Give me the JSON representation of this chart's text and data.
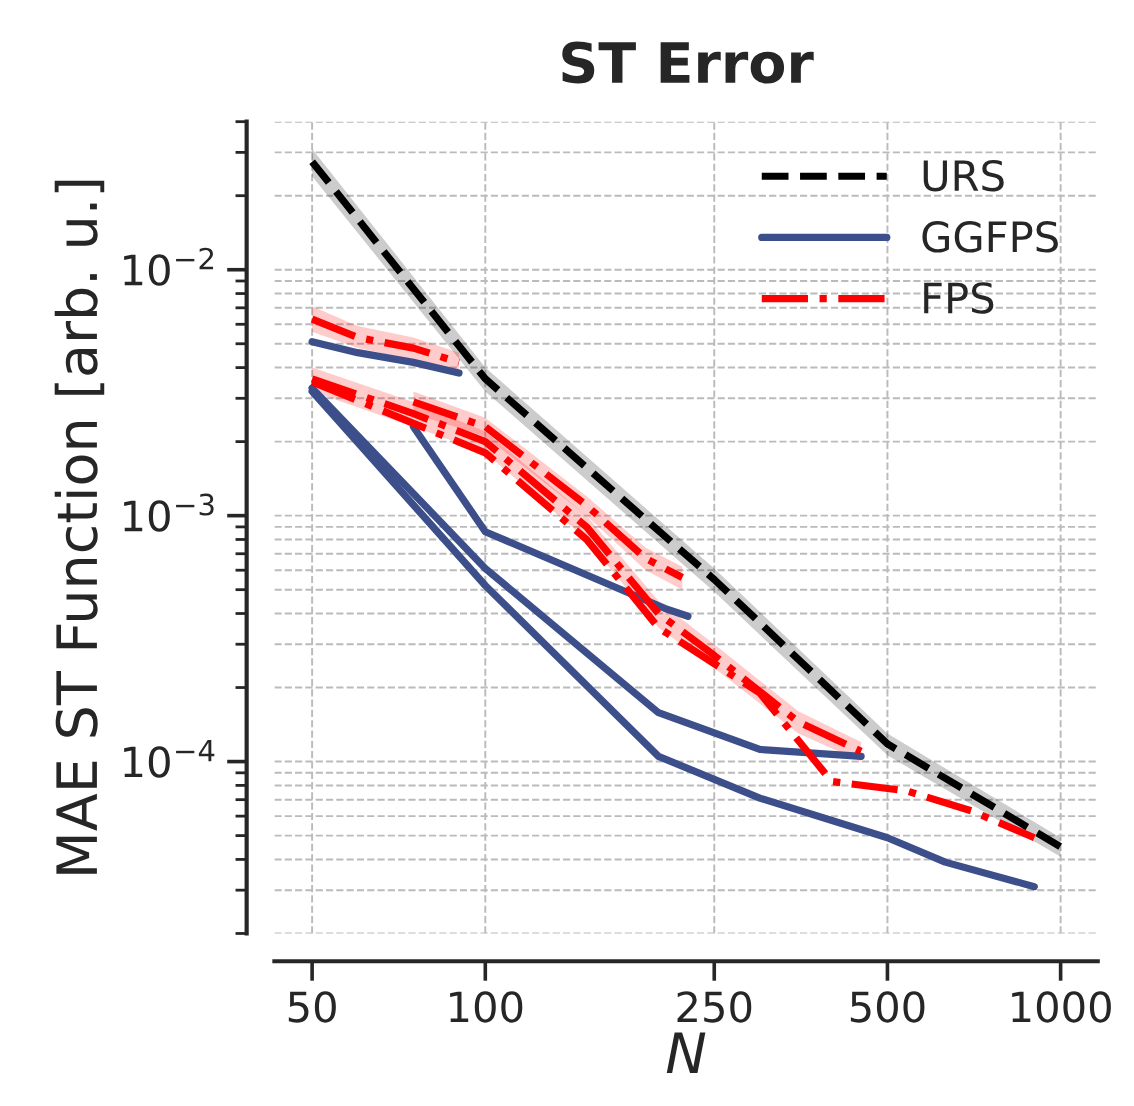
{
  "chart_data": {
    "type": "line",
    "title": "ST Error",
    "xlabel": "N",
    "ylabel": "MAE ST Function [arb. u.]",
    "log": "xy",
    "grid": true,
    "legend": "top right",
    "xlim": [
      43,
      1160
    ],
    "xticks": [
      50,
      100,
      250,
      500,
      1000
    ],
    "ylim": [
      2e-05,
      0.04
    ],
    "yticks": [
      {
        "value": 0.0001,
        "label": "10$^{−4}$"
      },
      {
        "value": 0.001,
        "label": "10$^{−3}$"
      },
      {
        "value": 0.01,
        "label": "10$^{−2}$"
      }
    ],
    "series": [
      {
        "name": "URS",
        "color": "#000000",
        "line_style": "dashed",
        "x": [
          50,
          100,
          250,
          500,
          1000
        ],
        "values": [
          0.0275,
          0.0036,
          0.00055,
          0.000118,
          4.5e-05
        ],
        "lower": [
          0.024,
          0.0032,
          0.00049,
          0.000106,
          4.1e-05
        ],
        "upper": [
          0.031,
          0.004,
          0.00061,
          0.00013,
          4.9e-05
        ]
      },
      {
        "name": "GGFPS",
        "color": "#3d4f8a",
        "line_style": "solid",
        "x": [
          50,
          60,
          75,
          90
        ],
        "values": [
          0.0051,
          0.0046,
          0.0042,
          0.0038
        ]
      },
      {
        "color": "#3d4f8a",
        "line_style": "solid",
        "x": [
          50,
          100,
          200,
          300,
          450
        ],
        "values": [
          0.0033,
          0.00061,
          0.000158,
          0.000112,
          0.000105
        ]
      },
      {
        "color": "#3d4f8a",
        "line_style": "solid",
        "x": [
          50,
          100,
          200,
          300,
          500,
          630,
          900
        ],
        "values": [
          0.0032,
          0.00052,
          0.000105,
          7.1e-05,
          4.9e-05,
          3.9e-05,
          3.1e-05
        ]
      },
      {
        "color": "#3d4f8a",
        "line_style": "solid",
        "x": [
          75,
          100,
          205,
          225
        ],
        "values": [
          0.0023,
          0.00086,
          0.00042,
          0.00039
        ]
      },
      {
        "name": "FPS",
        "color": "#ff0000",
        "line_style": "dashdot",
        "x": [
          50,
          60,
          75,
          90
        ],
        "values": [
          0.0063,
          0.0053,
          0.0048,
          0.0042
        ],
        "lower": [
          0.0056,
          0.0048,
          0.0043,
          0.0038
        ],
        "upper": [
          0.0071,
          0.0059,
          0.0053,
          0.0046
        ]
      },
      {
        "color": "#ff0000",
        "line_style": "dashdot",
        "x": [
          50,
          75,
          100,
          150,
          200,
          250,
          350,
          450
        ],
        "values": [
          0.0036,
          0.0026,
          0.002,
          0.0009,
          0.0004,
          0.00027,
          0.000145,
          0.00011
        ],
        "lower": [
          0.0032,
          0.0023,
          0.0018,
          0.0008,
          0.00035,
          0.00024,
          0.00013,
          0.0001
        ],
        "upper": [
          0.004,
          0.0029,
          0.0022,
          0.001,
          0.00045,
          0.0003,
          0.00016,
          0.00012
        ]
      },
      {
        "color": "#ff0000",
        "line_style": "dashdot",
        "x": [
          75,
          100,
          150,
          190,
          220
        ],
        "values": [
          0.0029,
          0.0023,
          0.0011,
          0.00067,
          0.00056
        ],
        "lower": [
          0.0026,
          0.0021,
          0.001,
          0.0006,
          0.0005
        ],
        "upper": [
          0.0032,
          0.0025,
          0.0012,
          0.00074,
          0.00062
        ]
      },
      {
        "color": "#ff0000",
        "line_style": "dashdot",
        "x": [
          50,
          100,
          150,
          200,
          300,
          400,
          540,
          700,
          900
        ],
        "values": [
          0.0035,
          0.0018,
          0.0008,
          0.00035,
          0.00019,
          8.3e-05,
          7.6e-05,
          6.3e-05,
          4.9e-05
        ]
      }
    ]
  }
}
